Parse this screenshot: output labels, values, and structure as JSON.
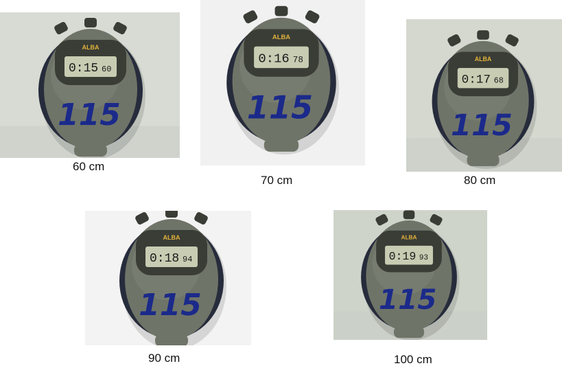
{
  "photos": [
    {
      "caption": "60 cm",
      "display": {
        "prefix": "0:15",
        "suffix": "60"
      },
      "brand": "ALBA",
      "handwritten_number": "115",
      "background": "#d7dbd3"
    },
    {
      "caption": "70 cm",
      "display": {
        "prefix": "0:16",
        "suffix": "78"
      },
      "brand": "ALBA",
      "handwritten_number": "115",
      "background": "#f1f1f1"
    },
    {
      "caption": "80 cm",
      "display": {
        "prefix": "0:17",
        "suffix": "68"
      },
      "brand": "ALBA",
      "handwritten_number": "115",
      "background": "#d4d8cf"
    },
    {
      "caption": "90 cm",
      "display": {
        "prefix": "0:18",
        "suffix": "94"
      },
      "brand": "ALBA",
      "handwritten_number": "115",
      "background": "#f3f3f3"
    },
    {
      "caption": "100 cm",
      "display": {
        "prefix": "0:19",
        "suffix": "93"
      },
      "brand": "ALBA",
      "handwritten_number": "115",
      "background": "#cfd4cb"
    }
  ],
  "colors": {
    "case": "#6f7468",
    "case_dark": "#3a3d36",
    "grip": "#272c3c",
    "lcd": "#c7ccb2",
    "ink": "#1b2a8a",
    "brand": "#e2b23a",
    "digits": "#1a1a1a"
  }
}
